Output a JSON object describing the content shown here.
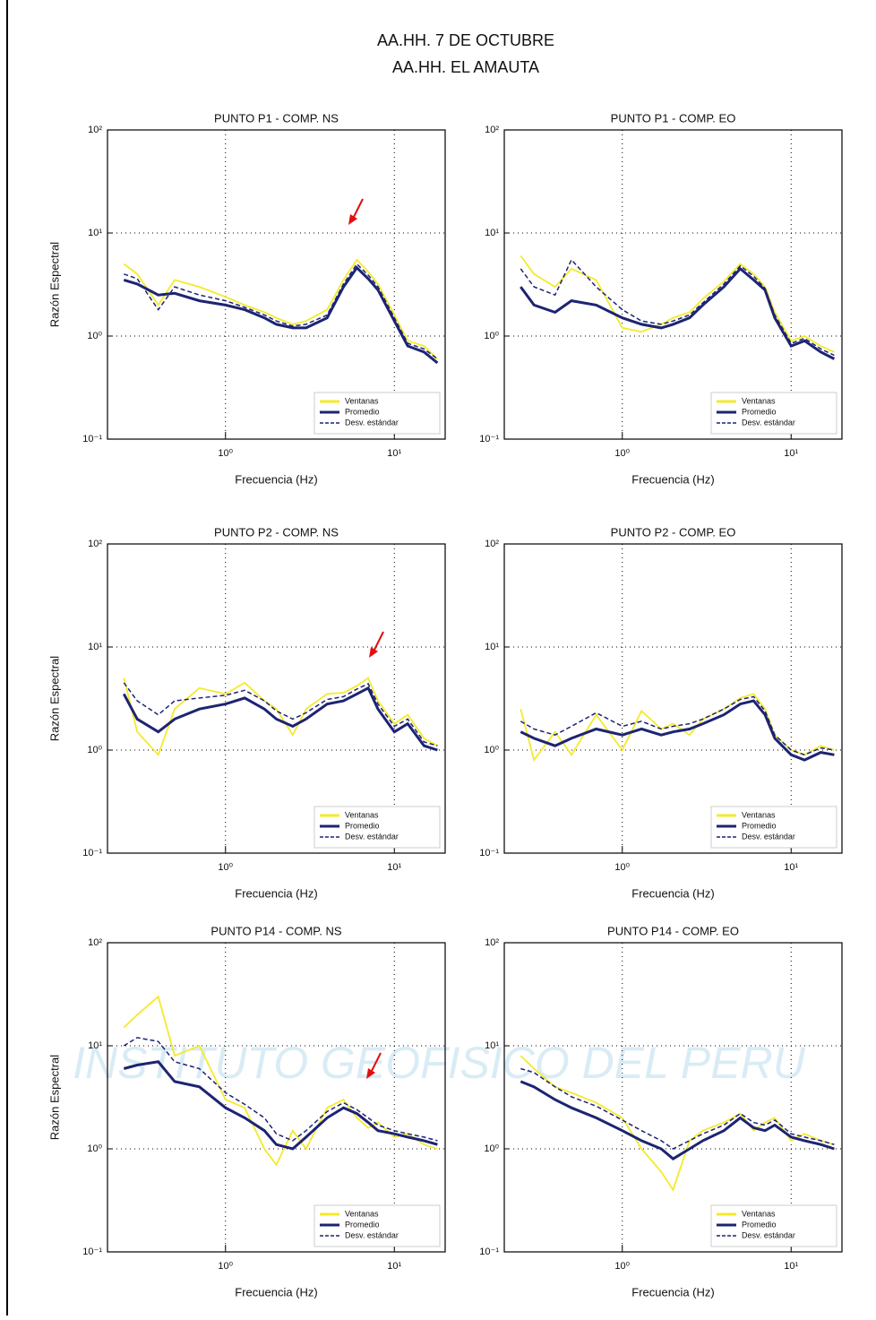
{
  "title": "AA.HH. 7 DE OCTUBRE",
  "subtitle": "AA.HH. EL AMAUTA",
  "watermark": "INSTITUTO GEOFISICO DEL PERU",
  "chart_data": [
    {
      "type": "line",
      "title": "PUNTO P1 - COMP. NS",
      "xlabel": "Frecuencia (Hz)",
      "ylabel": "Razón Espectral",
      "xscale": "log",
      "yscale": "log",
      "grid": true,
      "legend": "lower right",
      "xlim": [
        0.2,
        20
      ],
      "ylim": [
        0.1,
        100
      ],
      "xticks": [
        {
          "value": 1,
          "label": "10⁰"
        },
        {
          "value": 10,
          "label": "10¹"
        }
      ],
      "yticks": [
        {
          "value": 0.1,
          "label": "10⁻¹"
        },
        {
          "value": 1,
          "label": "10⁰"
        },
        {
          "value": 10,
          "label": "10¹"
        },
        {
          "value": 100,
          "label": "10²"
        }
      ],
      "x": [
        0.25,
        0.3,
        0.4,
        0.5,
        0.7,
        1,
        1.3,
        1.7,
        2,
        2.5,
        3,
        4,
        5,
        6,
        7,
        8,
        10,
        12,
        15,
        18
      ],
      "series": [
        {
          "name": "Ventanas",
          "color": "#f4ea2a",
          "values": [
            5,
            4,
            2.0,
            3.5,
            3.0,
            2.4,
            2.0,
            1.7,
            1.5,
            1.3,
            1.4,
            1.8,
            3.5,
            5.5,
            4.2,
            3.2,
            1.6,
            0.9,
            0.8,
            0.6
          ]
        },
        {
          "name": "Promedio",
          "color": "#1c2472",
          "values": [
            3.5,
            3.2,
            2.5,
            2.6,
            2.2,
            2.0,
            1.8,
            1.5,
            1.3,
            1.2,
            1.2,
            1.5,
            3.0,
            4.6,
            3.6,
            2.8,
            1.4,
            0.8,
            0.7,
            0.55
          ]
        },
        {
          "name": "Desv. estándar",
          "color": "#1c2472",
          "dashed": true,
          "values": [
            4,
            3.6,
            1.8,
            3.0,
            2.5,
            2.2,
            1.9,
            1.6,
            1.4,
            1.25,
            1.3,
            1.6,
            3.2,
            5.0,
            3.9,
            3.0,
            1.5,
            0.85,
            0.75,
            0.6
          ]
        }
      ]
    },
    {
      "type": "line",
      "title": "PUNTO P1 - COMP. EO",
      "xlabel": "Frecuencia (Hz)",
      "xscale": "log",
      "yscale": "log",
      "grid": true,
      "legend": "lower right",
      "xlim": [
        0.2,
        20
      ],
      "ylim": [
        0.1,
        100
      ],
      "xticks": [
        {
          "value": 1,
          "label": "10⁰"
        },
        {
          "value": 10,
          "label": "10¹"
        }
      ],
      "yticks": [
        {
          "value": 0.1,
          "label": "10⁻¹"
        },
        {
          "value": 1,
          "label": "10⁰"
        },
        {
          "value": 10,
          "label": "10¹"
        },
        {
          "value": 100,
          "label": "10²"
        }
      ],
      "x": [
        0.25,
        0.3,
        0.4,
        0.5,
        0.7,
        1,
        1.3,
        1.7,
        2,
        2.5,
        3,
        4,
        5,
        6,
        7,
        8,
        10,
        12,
        15,
        18
      ],
      "series": [
        {
          "name": "Ventanas",
          "color": "#f4ea2a",
          "values": [
            6,
            4,
            3,
            4.5,
            3.5,
            1.2,
            1.1,
            1.3,
            1.5,
            1.7,
            2.3,
            3.4,
            5,
            4,
            3,
            1.7,
            0.9,
            1.0,
            0.8,
            0.7
          ]
        },
        {
          "name": "Promedio",
          "color": "#1c2472",
          "values": [
            3.0,
            2.0,
            1.7,
            2.2,
            2.0,
            1.5,
            1.3,
            1.2,
            1.3,
            1.5,
            2.0,
            3.0,
            4.5,
            3.5,
            2.8,
            1.5,
            0.8,
            0.9,
            0.7,
            0.6
          ]
        },
        {
          "name": "Desv. estándar",
          "color": "#1c2472",
          "dashed": true,
          "values": [
            4.5,
            3,
            2.5,
            5.5,
            3,
            1.8,
            1.4,
            1.3,
            1.4,
            1.6,
            2.1,
            3.2,
            4.8,
            3.8,
            2.9,
            1.6,
            0.85,
            0.95,
            0.75,
            0.65
          ]
        }
      ]
    },
    {
      "type": "line",
      "title": "PUNTO P2 - COMP. NS",
      "xlabel": "Frecuencia (Hz)",
      "ylabel": "Razón Espectral",
      "xscale": "log",
      "yscale": "log",
      "grid": true,
      "legend": "lower right",
      "xlim": [
        0.2,
        20
      ],
      "ylim": [
        0.1,
        100
      ],
      "xticks": [
        {
          "value": 1,
          "label": "10⁰"
        },
        {
          "value": 10,
          "label": "10¹"
        }
      ],
      "yticks": [
        {
          "value": 0.1,
          "label": "10⁻¹"
        },
        {
          "value": 1,
          "label": "10⁰"
        },
        {
          "value": 10,
          "label": "10¹"
        },
        {
          "value": 100,
          "label": "10²"
        }
      ],
      "x": [
        0.25,
        0.3,
        0.4,
        0.5,
        0.7,
        1,
        1.3,
        1.7,
        2,
        2.5,
        3,
        4,
        5,
        6,
        7,
        8,
        10,
        12,
        15,
        18
      ],
      "series": [
        {
          "name": "Ventanas",
          "color": "#f4ea2a",
          "values": [
            5,
            1.5,
            0.9,
            2.5,
            4,
            3.5,
            4.5,
            3,
            2.5,
            1.4,
            2.5,
            3.5,
            3.6,
            4.2,
            5,
            3,
            1.8,
            2.2,
            1.3,
            1.1
          ]
        },
        {
          "name": "Promedio",
          "color": "#1c2472",
          "values": [
            3.5,
            2.0,
            1.5,
            2.0,
            2.5,
            2.8,
            3.2,
            2.5,
            2.0,
            1.7,
            2.0,
            2.8,
            3.0,
            3.5,
            4.0,
            2.5,
            1.5,
            1.8,
            1.1,
            1.0
          ]
        },
        {
          "name": "Desv. estándar",
          "color": "#1c2472",
          "dashed": true,
          "values": [
            4.5,
            3,
            2.2,
            3,
            3.2,
            3.4,
            3.8,
            3,
            2.4,
            2,
            2.3,
            3.1,
            3.3,
            3.9,
            4.4,
            2.8,
            1.7,
            2,
            1.2,
            1.1
          ]
        }
      ]
    },
    {
      "type": "line",
      "title": "PUNTO P2 - COMP. EO",
      "xlabel": "Frecuencia (Hz)",
      "xscale": "log",
      "yscale": "log",
      "grid": true,
      "legend": "lower right",
      "xlim": [
        0.2,
        20
      ],
      "ylim": [
        0.1,
        100
      ],
      "xticks": [
        {
          "value": 1,
          "label": "10⁰"
        },
        {
          "value": 10,
          "label": "10¹"
        }
      ],
      "yticks": [
        {
          "value": 0.1,
          "label": "10⁻¹"
        },
        {
          "value": 1,
          "label": "10⁰"
        },
        {
          "value": 10,
          "label": "10¹"
        },
        {
          "value": 100,
          "label": "10²"
        }
      ],
      "x": [
        0.25,
        0.3,
        0.4,
        0.5,
        0.7,
        1,
        1.3,
        1.7,
        2,
        2.5,
        3,
        4,
        5,
        6,
        7,
        8,
        10,
        12,
        15,
        18
      ],
      "series": [
        {
          "name": "Ventanas",
          "color": "#f4ea2a",
          "values": [
            2.5,
            0.8,
            1.5,
            0.9,
            2.2,
            1.0,
            2.4,
            1.6,
            1.8,
            1.4,
            2.0,
            2.5,
            3.2,
            3.5,
            2.5,
            1.4,
            1.0,
            0.9,
            1.1,
            1.0
          ]
        },
        {
          "name": "Promedio",
          "color": "#1c2472",
          "values": [
            1.5,
            1.3,
            1.1,
            1.3,
            1.6,
            1.4,
            1.6,
            1.4,
            1.5,
            1.6,
            1.8,
            2.2,
            2.8,
            3.0,
            2.2,
            1.3,
            0.9,
            0.8,
            0.95,
            0.9
          ]
        },
        {
          "name": "Desv. estándar",
          "color": "#1c2472",
          "dashed": true,
          "values": [
            1.9,
            1.6,
            1.4,
            1.7,
            2.3,
            1.7,
            1.9,
            1.6,
            1.7,
            1.8,
            2.0,
            2.5,
            3.1,
            3.3,
            2.4,
            1.4,
            1.0,
            0.9,
            1.05,
            1.0
          ]
        }
      ]
    },
    {
      "type": "line",
      "title": "PUNTO P14 - COMP. NS",
      "xlabel": "Frecuencia (Hz)",
      "ylabel": "Razón Espectral",
      "xscale": "log",
      "yscale": "log",
      "grid": true,
      "legend": "lower right",
      "xlim": [
        0.2,
        20
      ],
      "ylim": [
        0.1,
        100
      ],
      "xticks": [
        {
          "value": 1,
          "label": "10⁰"
        },
        {
          "value": 10,
          "label": "10¹"
        }
      ],
      "yticks": [
        {
          "value": 0.1,
          "label": "10⁻¹"
        },
        {
          "value": 1,
          "label": "10⁰"
        },
        {
          "value": 10,
          "label": "10¹"
        },
        {
          "value": 100,
          "label": "10²"
        }
      ],
      "x": [
        0.25,
        0.3,
        0.4,
        0.5,
        0.7,
        1,
        1.3,
        1.7,
        2,
        2.5,
        3,
        4,
        5,
        6,
        7,
        8,
        10,
        12,
        15,
        18
      ],
      "series": [
        {
          "name": "Ventanas",
          "color": "#f4ea2a",
          "values": [
            15,
            20,
            30,
            8,
            10,
            3,
            2.5,
            1.0,
            0.7,
            1.5,
            1.0,
            2.5,
            3,
            2,
            1.6,
            1.8,
            1.3,
            1.4,
            1.1,
            1.0
          ]
        },
        {
          "name": "Promedio",
          "color": "#1c2472",
          "values": [
            6,
            6.5,
            7,
            4.5,
            4,
            2.5,
            2.0,
            1.5,
            1.1,
            1.0,
            1.3,
            2.0,
            2.5,
            2.2,
            1.8,
            1.5,
            1.4,
            1.3,
            1.2,
            1.1
          ]
        },
        {
          "name": "Desv. estándar",
          "color": "#1c2472",
          "dashed": true,
          "values": [
            10,
            12,
            11,
            7,
            6,
            3.5,
            2.7,
            2,
            1.4,
            1.2,
            1.5,
            2.3,
            2.8,
            2.4,
            2,
            1.7,
            1.5,
            1.4,
            1.3,
            1.2
          ]
        }
      ]
    },
    {
      "type": "line",
      "title": "PUNTO P14 - COMP. EO",
      "xlabel": "Frecuencia (Hz)",
      "xscale": "log",
      "yscale": "log",
      "grid": true,
      "legend": "lower right",
      "xlim": [
        0.2,
        20
      ],
      "ylim": [
        0.1,
        100
      ],
      "xticks": [
        {
          "value": 1,
          "label": "10⁰"
        },
        {
          "value": 10,
          "label": "10¹"
        }
      ],
      "yticks": [
        {
          "value": 0.1,
          "label": "10⁻¹"
        },
        {
          "value": 1,
          "label": "10⁰"
        },
        {
          "value": 10,
          "label": "10¹"
        },
        {
          "value": 100,
          "label": "10²"
        }
      ],
      "x": [
        0.25,
        0.3,
        0.4,
        0.5,
        0.7,
        1,
        1.3,
        1.7,
        2,
        2.5,
        3,
        4,
        5,
        6,
        7,
        8,
        10,
        12,
        15,
        18
      ],
      "series": [
        {
          "name": "Ventanas",
          "color": "#f4ea2a",
          "values": [
            8,
            6,
            4,
            3.5,
            2.8,
            2.0,
            1.0,
            0.6,
            0.4,
            1.2,
            1.5,
            1.8,
            2.2,
            1.5,
            1.8,
            2.0,
            1.2,
            1.4,
            1.2,
            1.1
          ]
        },
        {
          "name": "Promedio",
          "color": "#1c2472",
          "values": [
            4.5,
            4,
            3,
            2.5,
            2.0,
            1.5,
            1.2,
            1.0,
            0.8,
            1.0,
            1.2,
            1.5,
            2.0,
            1.6,
            1.5,
            1.7,
            1.3,
            1.2,
            1.1,
            1.0
          ]
        },
        {
          "name": "Desv. estándar",
          "color": "#1c2472",
          "dashed": true,
          "values": [
            6,
            5.5,
            4,
            3.2,
            2.6,
            1.9,
            1.5,
            1.2,
            1.0,
            1.2,
            1.4,
            1.7,
            2.2,
            1.8,
            1.7,
            1.9,
            1.4,
            1.3,
            1.2,
            1.1
          ]
        }
      ]
    }
  ]
}
